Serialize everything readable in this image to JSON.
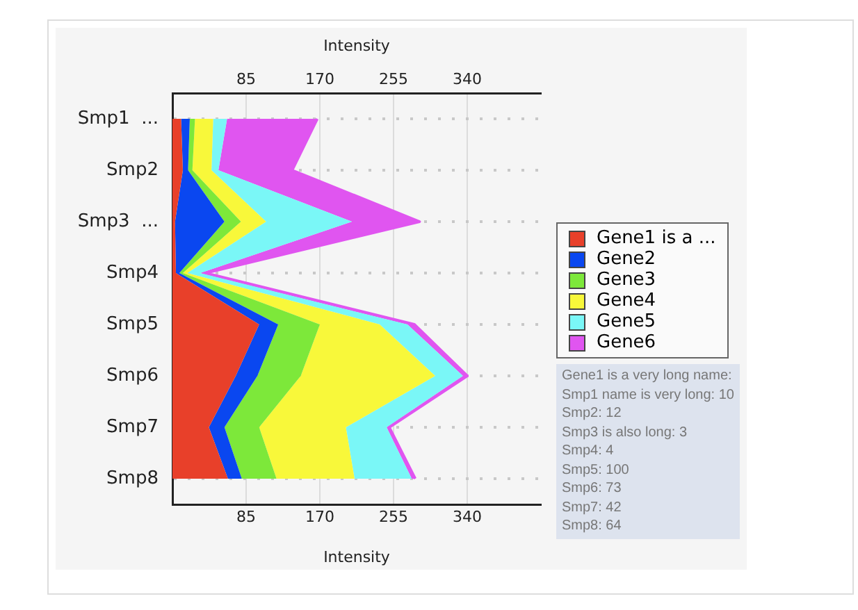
{
  "chart_data": {
    "type": "area",
    "orientation": "horizontal",
    "stacked": true,
    "categories": [
      "Smp1  ...",
      "Smp2",
      "Smp3  ...",
      "Smp4",
      "Smp5",
      "Smp6",
      "Smp7",
      "Smp8"
    ],
    "series": [
      {
        "name": "Gene1 is a ...",
        "color": "#e8402a",
        "values": [
          10,
          12,
          3,
          4,
          100,
          73,
          42,
          64
        ]
      },
      {
        "name": "Gene2",
        "color": "#0a47f0",
        "values": [
          10,
          6,
          57,
          4,
          22,
          25,
          18,
          16
        ]
      },
      {
        "name": "Gene3",
        "color": "#7de83a",
        "values": [
          6,
          5,
          19,
          4,
          48,
          50,
          40,
          40
        ]
      },
      {
        "name": "Gene4",
        "color": "#f8f83a",
        "values": [
          21,
          22,
          29,
          5,
          69,
          155,
          100,
          90
        ]
      },
      {
        "name": "Gene5",
        "color": "#7af7f7",
        "values": [
          16,
          8,
          99,
          15,
          32,
          32,
          47,
          66
        ]
      },
      {
        "name": "Gene6",
        "color": "#e055f0",
        "values": [
          104,
          85,
          78,
          6,
          8,
          5,
          3,
          4
        ]
      }
    ],
    "xlabel": "Intensity",
    "x2label": "Intensity",
    "xlim": [
      0,
      425
    ],
    "xticks": [
      85,
      170,
      255,
      340
    ],
    "x2lim": [
      0,
      425
    ],
    "x2ticks": [
      85,
      170,
      255,
      340
    ],
    "grid": true,
    "legend": "right",
    "annotations": [
      "Gene1 is a very long name:",
      "Smp1 name is very long: 10",
      "Smp2: 12",
      "Smp3 is also long: 3",
      "Smp4: 4",
      "Smp5: 100",
      "Smp6: 73",
      "Smp7: 42",
      "Smp8: 64"
    ]
  }
}
